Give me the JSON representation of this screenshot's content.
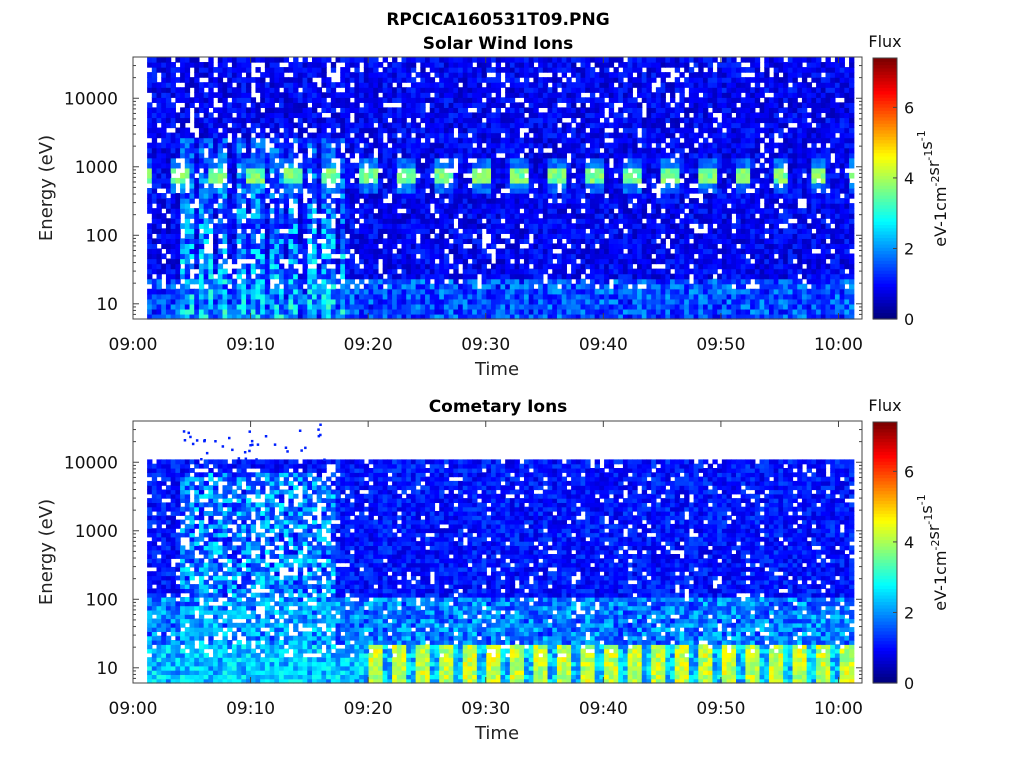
{
  "figure_title": "RPCICA160531T09.PNG",
  "chart_data": [
    {
      "type": "heatmap",
      "title": "Solar Wind Ions",
      "xlabel": "Time",
      "ylabel": "Energy (eV)",
      "xticks": [
        "09:00",
        "09:10",
        "09:20",
        "09:30",
        "09:40",
        "09:50",
        "10:00"
      ],
      "xlim_minutes": [
        0,
        62
      ],
      "yscale": "log",
      "ylim": [
        6,
        40000
      ],
      "yticks": [
        10,
        100,
        1000,
        10000
      ],
      "ytick_labels": [
        "10",
        "100",
        "1000",
        "10000"
      ],
      "data_start_minute": 1.2,
      "data_end_minute": 61.3,
      "upper_energy": 40000,
      "colorbar": {
        "title": "Flux",
        "label": "eV-1 cm-2 sr-1 s-1",
        "range": [
          0,
          7.4
        ],
        "ticks": [
          0,
          2,
          4,
          6
        ],
        "tick_labels": [
          "0",
          "2",
          "4",
          "6"
        ],
        "colormap": "jet"
      },
      "features": {
        "beam_energy_ev": 700,
        "beam_flux": 4.0,
        "beam_period_minutes": 3.2,
        "background_flux": 0.4,
        "burst_interval_minutes": [
          4,
          18
        ],
        "burst_flux": 2.6,
        "low_energy_flux": 1.6
      }
    },
    {
      "type": "heatmap",
      "title": "Cometary Ions",
      "xlabel": "Time",
      "ylabel": "Energy (eV)",
      "xticks": [
        "09:00",
        "09:10",
        "09:20",
        "09:30",
        "09:40",
        "09:50",
        "10:00"
      ],
      "xlim_minutes": [
        0,
        62
      ],
      "yscale": "log",
      "ylim": [
        6,
        40000
      ],
      "yticks": [
        10,
        100,
        1000,
        10000
      ],
      "ytick_labels": [
        "10",
        "100",
        "1000",
        "10000"
      ],
      "data_start_minute": 1.2,
      "data_end_minute": 61.3,
      "upper_energy": 11000,
      "sparse_above_energy": 11000,
      "sparse_interval_minutes": [
        4,
        17
      ],
      "colorbar": {
        "title": "Flux",
        "label": "eV-1 cm-2 sr-1 s-1",
        "range": [
          0,
          7.4
        ],
        "ticks": [
          0,
          2,
          4,
          6
        ],
        "tick_labels": [
          "0",
          "2",
          "4",
          "6"
        ],
        "colormap": "jet"
      },
      "features": {
        "low_energy_flux": 4.8,
        "low_energy_period_minutes": 2.0,
        "background_flux": 0.6,
        "burst_interval_minutes": [
          4,
          17
        ],
        "burst_flux": 2.2
      }
    }
  ],
  "colors": {
    "axis": "#444444",
    "background": "#ffffff"
  }
}
